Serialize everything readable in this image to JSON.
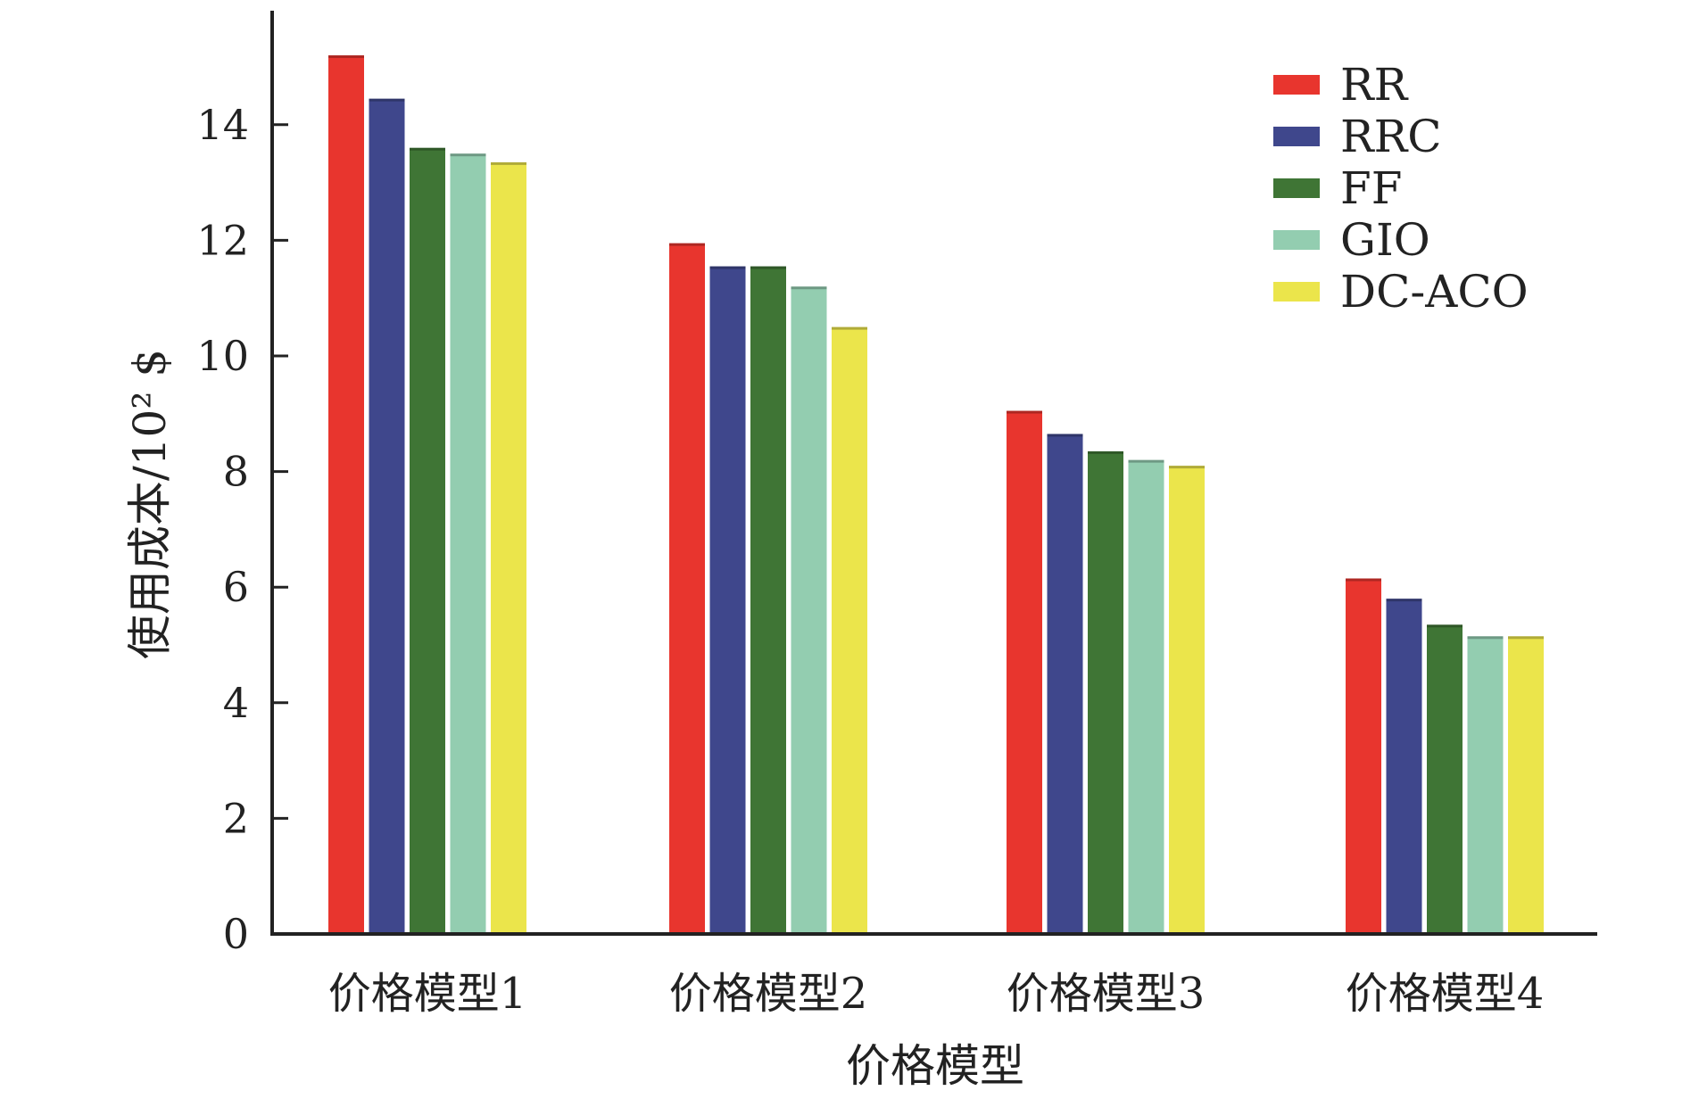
{
  "chart_data": {
    "type": "bar",
    "title": "",
    "xlabel": "价格模型",
    "ylabel": "使用成本/10² $",
    "ylim": [
      0,
      15.5
    ],
    "yticks": [
      0,
      2,
      4,
      6,
      8,
      10,
      12,
      14
    ],
    "ytick_labels": [
      "0",
      "2",
      "4",
      "6",
      "8",
      "10",
      "12",
      "14"
    ],
    "categories": [
      "价格模型1",
      "价格模型2",
      "价格模型3",
      "价格模型4"
    ],
    "series": [
      {
        "name": "RR",
        "color": "#e8352e",
        "values": [
          15.2,
          11.95,
          9.05,
          6.15
        ]
      },
      {
        "name": "RRC",
        "color": "#3f478c",
        "values": [
          14.45,
          11.55,
          8.65,
          5.8
        ]
      },
      {
        "name": "FF",
        "color": "#3f7535",
        "values": [
          13.6,
          11.55,
          8.35,
          5.35
        ]
      },
      {
        "name": "GIO",
        "color": "#93cdb0",
        "values": [
          13.5,
          11.2,
          8.2,
          5.15
        ]
      },
      {
        "name": "DC-ACO",
        "color": "#ebe54b",
        "values": [
          13.35,
          10.5,
          8.1,
          5.15
        ]
      }
    ],
    "grid": false,
    "legend_position": "top-right"
  }
}
